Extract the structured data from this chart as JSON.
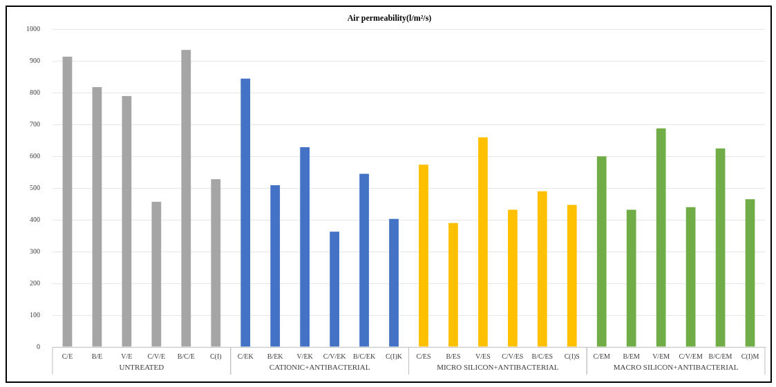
{
  "chart_data": {
    "type": "bar",
    "title": "Air permeability(l/m²/s)",
    "categories": [
      "C/E",
      "B/E",
      "V/E",
      "C/V/E",
      "B/C/E",
      "C(I)",
      "C/EK",
      "B/EK",
      "V/EK",
      "C/V/EK",
      "B/C/EK",
      "C(I)K",
      "C/ES",
      "B/ES",
      "V/ES",
      "C/V/ES",
      "B/C/ES",
      "C(I)S",
      "C/EM",
      "B/EM",
      "V/EM",
      "C/V/EM",
      "B/C/EM",
      "C(I)M"
    ],
    "values": [
      914,
      818,
      790,
      457,
      935,
      528,
      845,
      509,
      629,
      363,
      545,
      403,
      574,
      390,
      660,
      432,
      490,
      447,
      600,
      432,
      688,
      440,
      625,
      465
    ],
    "colors": [
      "#a5a5a5",
      "#a5a5a5",
      "#a5a5a5",
      "#a5a5a5",
      "#a5a5a5",
      "#a5a5a5",
      "#4472c4",
      "#4472c4",
      "#4472c4",
      "#4472c4",
      "#4472c4",
      "#4472c4",
      "#ffc000",
      "#ffc000",
      "#ffc000",
      "#ffc000",
      "#ffc000",
      "#ffc000",
      "#70ad47",
      "#70ad47",
      "#70ad47",
      "#70ad47",
      "#70ad47",
      "#70ad47"
    ],
    "annotations": [
      "UNTREATED",
      "CATIONIC+ANTIBACTERIAL",
      "MICRO SILICON+ANTIBACTERIAL",
      "MACRO SILICON+ANTIBACTERIAL"
    ],
    "ylim": [
      0,
      1000
    ],
    "yticks": [
      0,
      100,
      200,
      300,
      400,
      500,
      600,
      700,
      800,
      900,
      1000
    ],
    "grid": "y",
    "legend": false
  }
}
